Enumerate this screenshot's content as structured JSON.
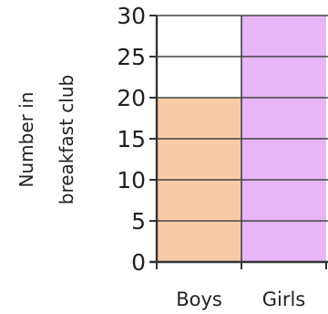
{
  "chart_data": {
    "type": "bar",
    "categories": [
      "Boys",
      "Girls"
    ],
    "values": [
      20,
      30
    ],
    "ylabel": [
      "Number in",
      "breakfast club"
    ],
    "ylim": [
      0,
      30
    ],
    "yticks": [
      "0",
      "5",
      "10",
      "15",
      "20",
      "25",
      "30"
    ],
    "grid": true,
    "colors": {
      "Boys": "#f7cba6",
      "Girls": "#e8b6f7",
      "gridline": "#444444",
      "axis": "#333333"
    }
  }
}
